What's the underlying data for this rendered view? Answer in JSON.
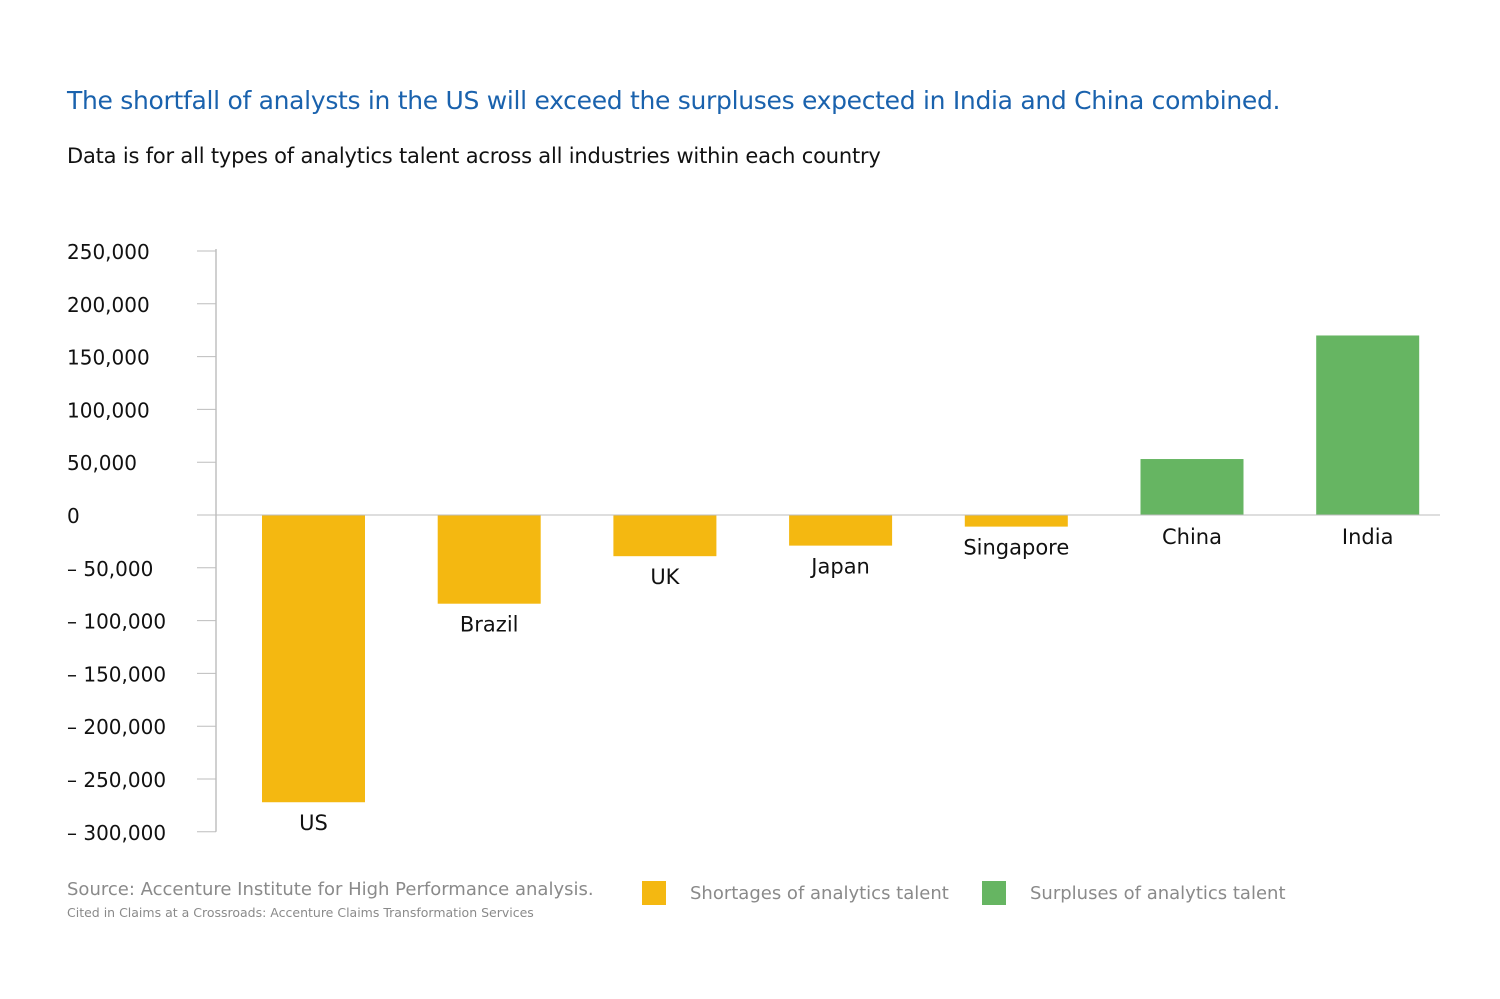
{
  "title": "The shortfall of analysts in the US will exceed the surpluses expected in India and China combined.",
  "subtitle": "Data is for all types of analytics talent across all industries within each country",
  "chart_data": {
    "type": "bar",
    "categories": [
      "US",
      "Brazil",
      "UK",
      "Japan",
      "Singapore",
      "China",
      "India"
    ],
    "values": [
      -272000,
      -84000,
      -39000,
      -29000,
      -11000,
      53000,
      170000
    ],
    "ylim": [
      -300000,
      250000
    ],
    "yticks": [
      250000,
      200000,
      150000,
      100000,
      50000,
      0,
      -50000,
      -100000,
      -150000,
      -200000,
      -250000,
      -300000
    ],
    "ytick_labels": [
      "250,000",
      "200,000",
      "150,000",
      "100,000",
      "50,000",
      "0",
      "– 50,000",
      "– 100,000",
      "– 150,000",
      "– 200,000",
      "– 250,000",
      "– 300,000"
    ],
    "legend": [
      {
        "label": "Shortages of analytics talent",
        "color": "#f4b811"
      },
      {
        "label": "Surpluses of analytics talent",
        "color": "#66b562"
      }
    ],
    "legend_position": "bottom",
    "grid": false
  },
  "source": "Source: Accenture Institute for High Performance analysis.",
  "cited": "Cited in Claims at a Crossroads: Accenture Claims Transformation Services"
}
